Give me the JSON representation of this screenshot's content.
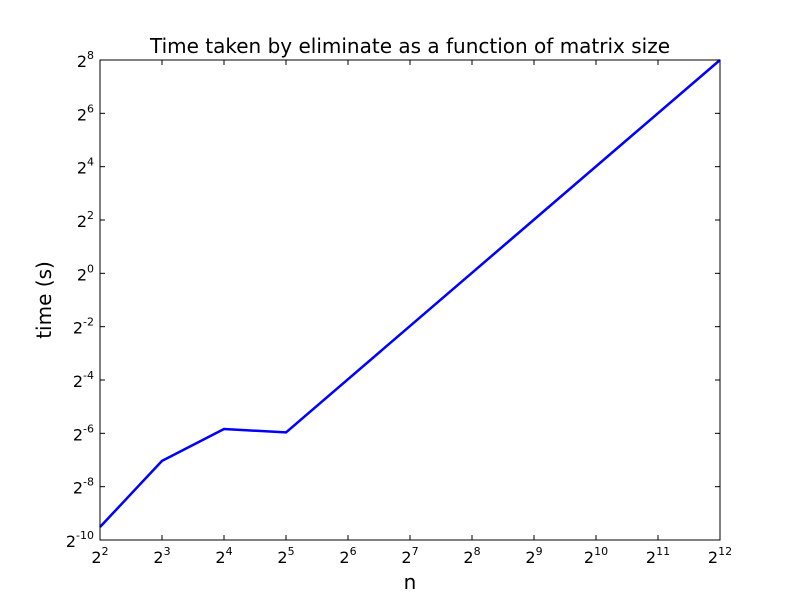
{
  "chart_data": {
    "type": "line",
    "title": "Time taken by eliminate as a function of matrix size",
    "xlabel": "n",
    "ylabel": "time (s)",
    "x_scale": "log2",
    "y_scale": "log2",
    "xlim": [
      4,
      4096
    ],
    "ylim": [
      0.0009765625,
      256
    ],
    "x_ticks": [
      {
        "value": 4,
        "base": "2",
        "exp": "2"
      },
      {
        "value": 8,
        "base": "2",
        "exp": "3"
      },
      {
        "value": 16,
        "base": "2",
        "exp": "4"
      },
      {
        "value": 32,
        "base": "2",
        "exp": "5"
      },
      {
        "value": 64,
        "base": "2",
        "exp": "6"
      },
      {
        "value": 128,
        "base": "2",
        "exp": "7"
      },
      {
        "value": 256,
        "base": "2",
        "exp": "8"
      },
      {
        "value": 512,
        "base": "2",
        "exp": "9"
      },
      {
        "value": 1024,
        "base": "2",
        "exp": "10"
      },
      {
        "value": 2048,
        "base": "2",
        "exp": "11"
      },
      {
        "value": 4096,
        "base": "2",
        "exp": "12"
      }
    ],
    "y_ticks": [
      {
        "value": 0.0009765625,
        "base": "2",
        "exp": "-10"
      },
      {
        "value": 0.00390625,
        "base": "2",
        "exp": "-8"
      },
      {
        "value": 0.015625,
        "base": "2",
        "exp": "-6"
      },
      {
        "value": 0.0625,
        "base": "2",
        "exp": "-4"
      },
      {
        "value": 0.25,
        "base": "2",
        "exp": "-2"
      },
      {
        "value": 1,
        "base": "2",
        "exp": "0"
      },
      {
        "value": 4,
        "base": "2",
        "exp": "2"
      },
      {
        "value": 16,
        "base": "2",
        "exp": "4"
      },
      {
        "value": 64,
        "base": "2",
        "exp": "6"
      },
      {
        "value": 256,
        "base": "2",
        "exp": "8"
      }
    ],
    "series": [
      {
        "color": "#0000ff",
        "x": [
          4,
          8,
          16,
          32,
          4096
        ],
        "y": [
          0.00137,
          0.00763,
          0.0175,
          0.016,
          256
        ]
      }
    ],
    "grid": false,
    "legend": "none"
  }
}
